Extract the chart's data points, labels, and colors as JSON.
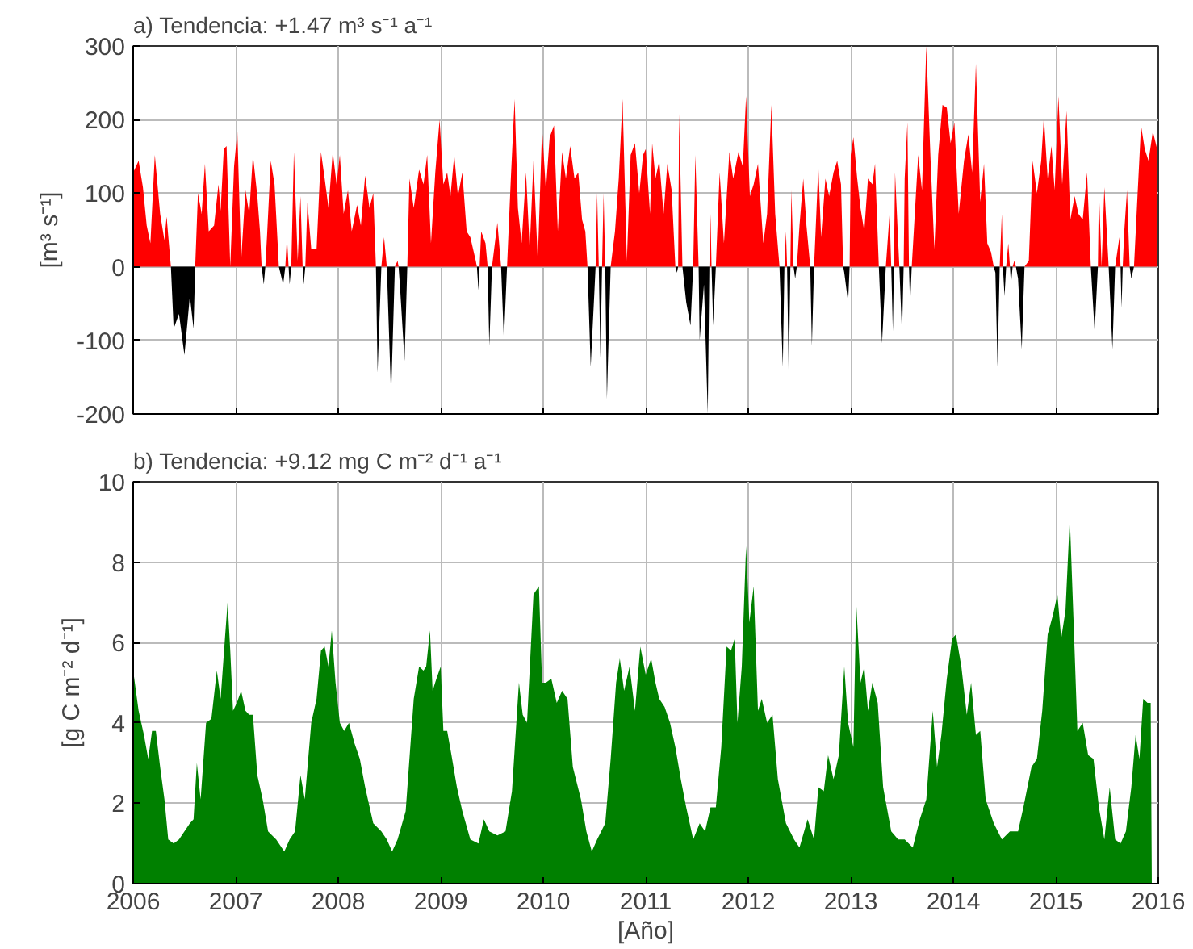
{
  "chart_data": [
    {
      "type": "area",
      "title": "a) Tendencia: +1.47 m³ s⁻¹ a⁻¹",
      "ylabel": "[m³ s⁻¹]",
      "xlim": [
        2006,
        2016
      ],
      "xticks": [
        2006,
        2007,
        2008,
        2009,
        2010,
        2011,
        2012,
        2013,
        2014,
        2015,
        2016
      ],
      "ylim": [
        -200,
        300
      ],
      "yticks": [
        -200,
        -100,
        0,
        100,
        200,
        300
      ],
      "grid": true,
      "tick_labels": "y",
      "series": [
        {
          "color": "#ff0000",
          "x": [
            2006.0,
            2006.053,
            2006.095,
            2006.132,
            2006.168,
            2006.211,
            2006.263,
            2006.305,
            2006.326,
            2006.368,
            2006.605,
            2006.632,
            2006.668,
            2006.7,
            2006.737,
            2006.789,
            2006.832,
            2006.853,
            2006.884,
            2006.911,
            2006.947,
            2006.984,
            2007.016,
            2007.053,
            2007.095,
            2007.132,
            2007.168,
            2007.211,
            2007.237,
            2007.253,
            2007.289,
            2007.305,
            2007.342,
            2007.379,
            2007.421,
            2007.484,
            2007.5,
            2007.516,
            2007.542,
            2007.568,
            2007.605,
            2007.632,
            2007.653,
            2007.679,
            2007.7,
            2007.737,
            2007.789,
            2007.832,
            2007.868,
            2007.905,
            2007.947,
            2007.984,
            2008.016,
            2008.053,
            2008.095,
            2008.132,
            2008.184,
            2008.221,
            2008.263,
            2008.305,
            2008.342,
            2008.368,
            2008.421,
            2008.447,
            2008.474,
            2008.553,
            2008.579,
            2008.589,
            2008.674,
            2008.695,
            2008.737,
            2008.789,
            2008.832,
            2008.868,
            2008.905,
            2008.947,
            2008.989,
            2009.026,
            2009.063,
            2009.095,
            2009.132,
            2009.168,
            2009.211,
            2009.253,
            2009.289,
            2009.342,
            2009.353,
            2009.379,
            2009.395,
            2009.437,
            2009.458,
            2009.5,
            2009.553,
            2009.589,
            2009.647,
            2009.684,
            2009.721,
            2009.753,
            2009.789,
            2009.832,
            2009.868,
            2009.905,
            2009.947,
            2009.989,
            2010.026,
            2010.063,
            2010.105,
            2010.142,
            2010.184,
            2010.221,
            2010.263,
            2010.305,
            2010.342,
            2010.379,
            2010.411,
            2010.432,
            2010.511,
            2010.526,
            2010.542,
            2010.574,
            2010.589,
            2010.605,
            2010.658,
            2010.7,
            2010.737,
            2010.774,
            2010.816,
            2010.853,
            2010.895,
            2010.937,
            2010.974,
            2011.0,
            2011.042,
            2011.063,
            2011.095,
            2011.132,
            2011.174,
            2011.211,
            2011.253,
            2011.289,
            2011.316,
            2011.326,
            2011.358,
            2011.463,
            2011.484,
            2011.516,
            2011.621,
            2011.632,
            2011.642,
            2011.684,
            2011.721,
            2011.763,
            2011.816,
            2011.853,
            2011.905,
            2011.947,
            2011.979,
            2012.016,
            2012.053,
            2012.095,
            2012.147,
            2012.184,
            2012.226,
            2012.263,
            2012.305,
            2012.353,
            2012.368,
            2012.379,
            2012.411,
            2012.421,
            2012.442,
            2012.474,
            2012.5,
            2012.537,
            2012.568,
            2012.605,
            2012.642,
            2012.684,
            2012.711,
            2012.753,
            2012.789,
            2012.832,
            2012.868,
            2012.905,
            2012.926,
            2012.989,
            2013.0,
            2013.026,
            2013.063,
            2013.095,
            2013.132,
            2013.168,
            2013.211,
            2013.237,
            2013.274,
            2013.342,
            2013.379,
            2013.395,
            2013.421,
            2013.432,
            2013.474,
            2013.516,
            2013.526,
            2013.553,
            2013.568,
            2013.595,
            2013.658,
            2013.695,
            2013.737,
            2013.779,
            2013.816,
            2013.853,
            2013.895,
            2013.937,
            2013.974,
            2014.011,
            2014.053,
            2014.105,
            2014.147,
            2014.184,
            2014.221,
            2014.263,
            2014.3,
            2014.332,
            2014.368,
            2014.395,
            2014.453,
            2014.474,
            2014.484,
            2014.516,
            2014.537,
            2014.553,
            2014.579,
            2014.595,
            2014.611,
            2014.695,
            2014.737,
            2014.774,
            2014.816,
            2014.858,
            2014.884,
            2014.921,
            2014.958,
            2014.989,
            2015.026,
            2015.063,
            2015.105,
            2015.142,
            2015.184,
            2015.221,
            2015.263,
            2015.305,
            2015.342,
            2015.411,
            2015.421,
            2015.447,
            2015.474,
            2015.516,
            2015.579,
            2015.621,
            2015.632,
            2015.653,
            2015.668,
            2015.695,
            2015.721,
            2015.763,
            2015.8,
            2015.832,
            2015.868,
            2015.905,
            2015.947,
            2015.989
          ],
          "values": [
            128,
            144,
            108,
            56,
            32,
            152,
            72,
            36,
            68,
            0,
            0,
            100,
            72,
            140,
            48,
            56,
            112,
            76,
            160,
            164,
            0,
            136,
            184,
            8,
            104,
            72,
            152,
            96,
            48,
            0,
            0,
            40,
            144,
            112,
            0,
            0,
            40,
            0,
            0,
            156,
            8,
            96,
            0,
            0,
            88,
            24,
            24,
            156,
            120,
            80,
            156,
            112,
            152,
            72,
            104,
            48,
            84,
            56,
            124,
            80,
            100,
            0,
            0,
            40,
            0,
            0,
            8,
            0,
            0,
            120,
            80,
            132,
            112,
            152,
            32,
            128,
            200,
            112,
            128,
            96,
            152,
            96,
            128,
            48,
            40,
            8,
            0,
            0,
            48,
            32,
            0,
            0,
            60,
            0,
            0,
            120,
            228,
            80,
            32,
            128,
            24,
            144,
            8,
            188,
            104,
            176,
            192,
            48,
            156,
            120,
            164,
            120,
            128,
            64,
            48,
            0,
            0,
            100,
            0,
            0,
            100,
            0,
            0,
            48,
            120,
            228,
            8,
            152,
            168,
            100,
            152,
            160,
            72,
            168,
            120,
            144,
            72,
            140,
            104,
            0,
            0,
            208,
            0,
            0,
            152,
            0,
            0,
            72,
            0,
            0,
            128,
            32,
            156,
            120,
            156,
            136,
            232,
            96,
            112,
            140,
            32,
            72,
            220,
            72,
            0,
            0,
            48,
            0,
            0,
            104,
            0,
            0,
            56,
            120,
            56,
            0,
            0,
            136,
            40,
            120,
            96,
            128,
            144,
            112,
            0,
            0,
            152,
            176,
            120,
            80,
            48,
            120,
            112,
            140,
            0,
            0,
            72,
            0,
            0,
            128,
            0,
            0,
            120,
            196,
            0,
            0,
            152,
            104,
            300,
            144,
            24,
            152,
            220,
            216,
            168,
            196,
            72,
            144,
            180,
            128,
            276,
            88,
            140,
            32,
            20,
            0,
            0,
            72,
            0,
            0,
            32,
            0,
            0,
            8,
            0,
            0,
            8,
            144,
            100,
            144,
            204,
            120,
            164,
            104,
            232,
            112,
            212,
            64,
            96,
            72,
            64,
            128,
            0,
            0,
            104,
            0,
            108,
            0,
            0,
            40,
            0,
            0,
            48,
            104,
            0,
            0,
            104,
            192,
            160,
            144,
            184,
            160
          ]
        },
        {
          "color": "#000000",
          "x": [
            2006.368,
            2006.395,
            2006.447,
            2006.5,
            2006.553,
            2006.589,
            2006.605,
            2007.253,
            2007.274,
            2007.289,
            2007.421,
            2007.463,
            2007.484,
            2007.516,
            2007.526,
            2007.542,
            2007.653,
            2007.663,
            2007.679,
            2008.368,
            2008.384,
            2008.421,
            2008.474,
            2008.516,
            2008.553,
            2008.589,
            2008.605,
            2008.647,
            2008.674,
            2009.353,
            2009.368,
            2009.379,
            2009.458,
            2009.474,
            2009.5,
            2009.589,
            2009.616,
            2009.647,
            2010.432,
            2010.463,
            2010.5,
            2010.511,
            2010.542,
            2010.558,
            2010.574,
            2010.605,
            2010.621,
            2010.658,
            2011.289,
            2011.305,
            2011.316,
            2011.358,
            2011.395,
            2011.437,
            2011.463,
            2011.516,
            2011.526,
            2011.568,
            2011.605,
            2011.621,
            2011.642,
            2011.658,
            2011.684,
            2012.305,
            2012.337,
            2012.353,
            2012.379,
            2012.395,
            2012.411,
            2012.442,
            2012.458,
            2012.474,
            2012.605,
            2012.621,
            2012.642,
            2012.926,
            2012.937,
            2012.974,
            2012.989,
            2013.274,
            2013.305,
            2013.342,
            2013.395,
            2013.411,
            2013.421,
            2013.474,
            2013.5,
            2013.516,
            2013.568,
            2013.579,
            2013.595,
            2014.395,
            2014.411,
            2014.432,
            2014.453,
            2014.484,
            2014.5,
            2014.516,
            2014.553,
            2014.563,
            2014.579,
            2014.611,
            2014.632,
            2014.668,
            2014.695,
            2015.342,
            2015.379,
            2015.411,
            2015.516,
            2015.553,
            2015.579,
            2015.632,
            2015.642,
            2015.653,
            2015.721,
            2015.737,
            2015.763
          ],
          "values": [
            0,
            -84,
            -64,
            -120,
            -40,
            -84,
            0,
            0,
            -24,
            0,
            0,
            -24,
            0,
            0,
            -24,
            0,
            0,
            -24,
            0,
            0,
            -144,
            0,
            0,
            -176,
            0,
            0,
            -32,
            -128,
            0,
            0,
            -32,
            0,
            0,
            -108,
            0,
            0,
            -100,
            0,
            0,
            -136,
            -32,
            0,
            0,
            -124,
            0,
            0,
            -180,
            0,
            0,
            -8,
            0,
            0,
            -48,
            -80,
            0,
            0,
            -100,
            -24,
            -200,
            0,
            0,
            -80,
            0,
            0,
            -136,
            0,
            0,
            -152,
            0,
            0,
            -16,
            0,
            0,
            -108,
            0,
            0,
            -8,
            -48,
            0,
            0,
            -104,
            0,
            0,
            -88,
            0,
            0,
            -92,
            0,
            0,
            -52,
            0,
            0,
            -8,
            -136,
            0,
            0,
            -40,
            0,
            0,
            -24,
            0,
            0,
            -16,
            -112,
            0,
            0,
            -88,
            0,
            0,
            -112,
            0,
            0,
            -56,
            0,
            0,
            -16,
            0
          ]
        }
      ]
    },
    {
      "type": "area",
      "title": "b) Tendencia: +9.12 mg C m⁻² d⁻¹ a⁻¹",
      "xlabel": "[Año]",
      "ylabel": "[g C m⁻² d⁻¹]",
      "xlim": [
        2006,
        2016
      ],
      "xticks": [
        2006,
        2007,
        2008,
        2009,
        2010,
        2011,
        2012,
        2013,
        2014,
        2015,
        2016
      ],
      "ylim": [
        0,
        10
      ],
      "yticks": [
        0,
        2,
        4,
        6,
        8,
        10
      ],
      "grid": true,
      "series": [
        {
          "color": "#008000",
          "x": [
            2006.0,
            2006.053,
            2006.105,
            2006.147,
            2006.184,
            2006.221,
            2006.263,
            2006.305,
            2006.342,
            2006.395,
            2006.447,
            2006.5,
            2006.553,
            2006.589,
            2006.621,
            2006.658,
            2006.711,
            2006.763,
            2006.816,
            2006.853,
            2006.895,
            2006.921,
            2006.947,
            2006.974,
            2007.011,
            2007.053,
            2007.095,
            2007.132,
            2007.168,
            2007.211,
            2007.263,
            2007.316,
            2007.395,
            2007.474,
            2007.526,
            2007.579,
            2007.632,
            2007.674,
            2007.737,
            2007.789,
            2007.832,
            2007.868,
            2007.905,
            2007.937,
            2007.974,
            2008.016,
            2008.058,
            2008.105,
            2008.158,
            2008.211,
            2008.263,
            2008.342,
            2008.421,
            2008.474,
            2008.526,
            2008.579,
            2008.658,
            2008.737,
            2008.789,
            2008.832,
            2008.858,
            2008.895,
            2008.921,
            2008.958,
            2009.0,
            2009.026,
            2009.063,
            2009.105,
            2009.158,
            2009.211,
            2009.289,
            2009.368,
            2009.421,
            2009.474,
            2009.553,
            2009.632,
            2009.695,
            2009.763,
            2009.8,
            2009.842,
            2009.905,
            2009.958,
            2009.989,
            2010.026,
            2010.079,
            2010.132,
            2010.184,
            2010.237,
            2010.289,
            2010.368,
            2010.421,
            2010.474,
            2010.526,
            2010.605,
            2010.658,
            2010.711,
            2010.747,
            2010.789,
            2010.842,
            2010.895,
            2010.947,
            2011.0,
            2011.053,
            2011.095,
            2011.132,
            2011.184,
            2011.237,
            2011.289,
            2011.342,
            2011.395,
            2011.463,
            2011.526,
            2011.579,
            2011.632,
            2011.684,
            2011.737,
            2011.789,
            2011.832,
            2011.868,
            2011.895,
            2011.937,
            2011.979,
            2012.011,
            2012.053,
            2012.095,
            2012.132,
            2012.184,
            2012.237,
            2012.289,
            2012.368,
            2012.447,
            2012.5,
            2012.579,
            2012.642,
            2012.684,
            2012.737,
            2012.779,
            2012.832,
            2012.884,
            2012.937,
            2012.974,
            2013.026,
            2013.053,
            2013.095,
            2013.132,
            2013.168,
            2013.211,
            2013.263,
            2013.316,
            2013.395,
            2013.463,
            2013.526,
            2013.605,
            2013.674,
            2013.737,
            2013.8,
            2013.842,
            2013.884,
            2013.937,
            2013.989,
            2014.026,
            2014.079,
            2014.132,
            2014.174,
            2014.221,
            2014.263,
            2014.316,
            2014.395,
            2014.474,
            2014.553,
            2014.632,
            2014.684,
            2014.763,
            2014.816,
            2014.868,
            2014.921,
            2014.974,
            2015.016,
            2015.053,
            2015.095,
            2015.137,
            2015.174,
            2015.211,
            2015.263,
            2015.316,
            2015.368,
            2015.421,
            2015.474,
            2015.526,
            2015.579,
            2015.632,
            2015.684,
            2015.737,
            2015.779,
            2015.816,
            2015.853,
            2015.895,
            2015.926,
            2015.937
          ],
          "values": [
            5.3,
            4.3,
            3.7,
            3.1,
            3.8,
            3.8,
            2.9,
            2.1,
            1.1,
            1.0,
            1.1,
            1.3,
            1.5,
            1.6,
            3.0,
            2.1,
            4.0,
            4.1,
            5.3,
            4.6,
            6.1,
            7.0,
            5.8,
            4.3,
            4.5,
            4.8,
            4.3,
            4.2,
            4.2,
            2.7,
            2.1,
            1.3,
            1.1,
            0.8,
            1.1,
            1.3,
            2.7,
            2.1,
            4.0,
            4.6,
            5.8,
            5.9,
            5.4,
            6.3,
            5.0,
            4.0,
            3.8,
            4.0,
            3.5,
            3.1,
            2.4,
            1.5,
            1.3,
            1.1,
            0.8,
            1.1,
            1.8,
            4.6,
            5.4,
            5.3,
            5.4,
            6.3,
            4.8,
            5.1,
            5.4,
            3.8,
            3.8,
            3.2,
            2.4,
            1.8,
            1.1,
            1.0,
            1.6,
            1.3,
            1.2,
            1.3,
            2.3,
            5.0,
            4.2,
            4.0,
            7.2,
            7.4,
            5.0,
            5.0,
            5.1,
            4.5,
            4.8,
            4.6,
            2.9,
            2.1,
            1.3,
            0.8,
            1.1,
            1.5,
            3.1,
            5.0,
            5.6,
            4.8,
            5.4,
            4.3,
            5.9,
            5.2,
            5.6,
            5.0,
            4.6,
            4.4,
            4.0,
            3.4,
            2.6,
            1.9,
            1.1,
            1.5,
            1.3,
            1.9,
            1.9,
            3.4,
            5.9,
            5.8,
            6.1,
            4.0,
            5.4,
            8.4,
            6.5,
            7.4,
            4.3,
            4.6,
            4.0,
            4.2,
            2.6,
            1.5,
            1.1,
            0.9,
            1.6,
            1.1,
            2.4,
            2.3,
            3.2,
            2.6,
            3.2,
            5.4,
            4.0,
            3.4,
            7.0,
            5.0,
            5.4,
            4.3,
            5.0,
            4.5,
            2.4,
            1.3,
            1.1,
            1.1,
            0.9,
            1.6,
            2.1,
            4.3,
            2.9,
            3.7,
            5.1,
            6.1,
            6.2,
            5.4,
            4.2,
            5.0,
            3.7,
            3.8,
            2.1,
            1.5,
            1.1,
            1.3,
            1.3,
            1.9,
            2.9,
            3.1,
            4.3,
            6.2,
            6.7,
            7.2,
            6.1,
            6.8,
            9.1,
            6.5,
            3.8,
            4.0,
            3.2,
            3.1,
            1.9,
            1.1,
            2.4,
            1.1,
            1.0,
            1.3,
            2.4,
            3.7,
            3.1,
            4.6,
            4.5,
            4.5,
            0
          ]
        }
      ]
    }
  ]
}
